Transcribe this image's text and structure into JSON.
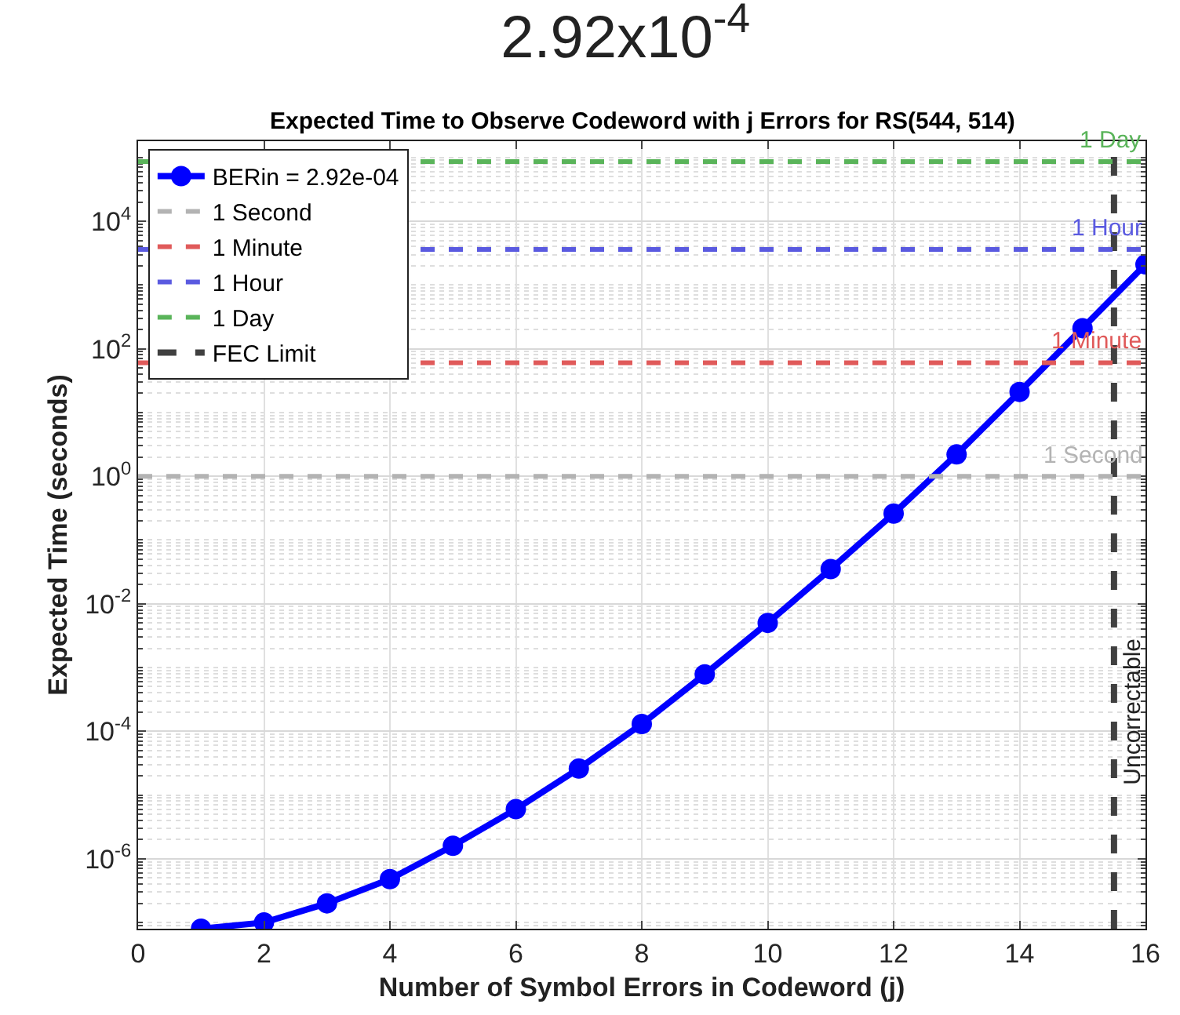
{
  "chart_data": {
    "type": "line",
    "title": "2.92x10$^{-4}$",
    "subtitle": "Expected Time to Observe Codeword with j Errors for RS(544, 514)",
    "xlabel": "Number of Symbol Errors in Codeword (j)",
    "ylabel": "Expected Time (seconds)",
    "x": [
      1,
      2,
      3,
      4,
      5,
      6,
      7,
      8,
      9,
      10,
      11,
      12,
      13,
      14,
      15,
      16
    ],
    "series": [
      {
        "name": "BERin = 2.92e-04",
        "color": "#0000ff",
        "marker": "circle",
        "line_style": "solid",
        "values": [
          8e-08,
          1e-07,
          2e-07,
          4.8e-07,
          1.6e-06,
          6e-06,
          2.6e-05,
          0.00013,
          0.00078,
          0.005,
          0.035,
          0.26,
          2.2,
          21,
          210,
          2100
        ]
      },
      {
        "name": "FEC Limit",
        "color": "#404040",
        "marker": "none",
        "line_style": "dashed",
        "x": [
          15.5,
          15.5
        ],
        "values": [
          8e-08,
          180000.0
        ]
      }
    ],
    "ref_lines": [
      {
        "axis": "y",
        "value": 1,
        "label": "1 Second",
        "color": "#b3b3b3",
        "line_style": "dashed"
      },
      {
        "axis": "y",
        "value": 60,
        "label": "1 Minute",
        "color": "#e05a5a",
        "line_style": "dashed"
      },
      {
        "axis": "y",
        "value": 3600,
        "label": "1 Hour",
        "color": "#5a5ae0",
        "line_style": "dashed"
      },
      {
        "axis": "y",
        "value": 86400,
        "label": "1 Day",
        "color": "#5ab45a",
        "line_style": "dashed"
      }
    ],
    "annotations": [
      {
        "text": "Uncorrectable",
        "x": 15.5,
        "y": 0.0002
      }
    ],
    "log": "y",
    "grid": true,
    "legend": "top left",
    "xlim": [
      0,
      16
    ],
    "xticks": [
      0,
      2,
      4,
      6,
      8,
      10,
      12,
      14,
      16
    ],
    "ylim": [
      8e-08,
      180000.0
    ],
    "yticks": [
      {
        "value": 1e-06,
        "label": "10$^{-6}$"
      },
      {
        "value": 0.0001,
        "label": "10$^{-4}$"
      },
      {
        "value": 0.01,
        "label": "10$^{-2}$"
      },
      {
        "value": 1,
        "label": "10$^{0}$"
      },
      {
        "value": 100,
        "label": "10$^{2}$"
      },
      {
        "value": 10000,
        "label": "10$^{4}$"
      }
    ]
  }
}
